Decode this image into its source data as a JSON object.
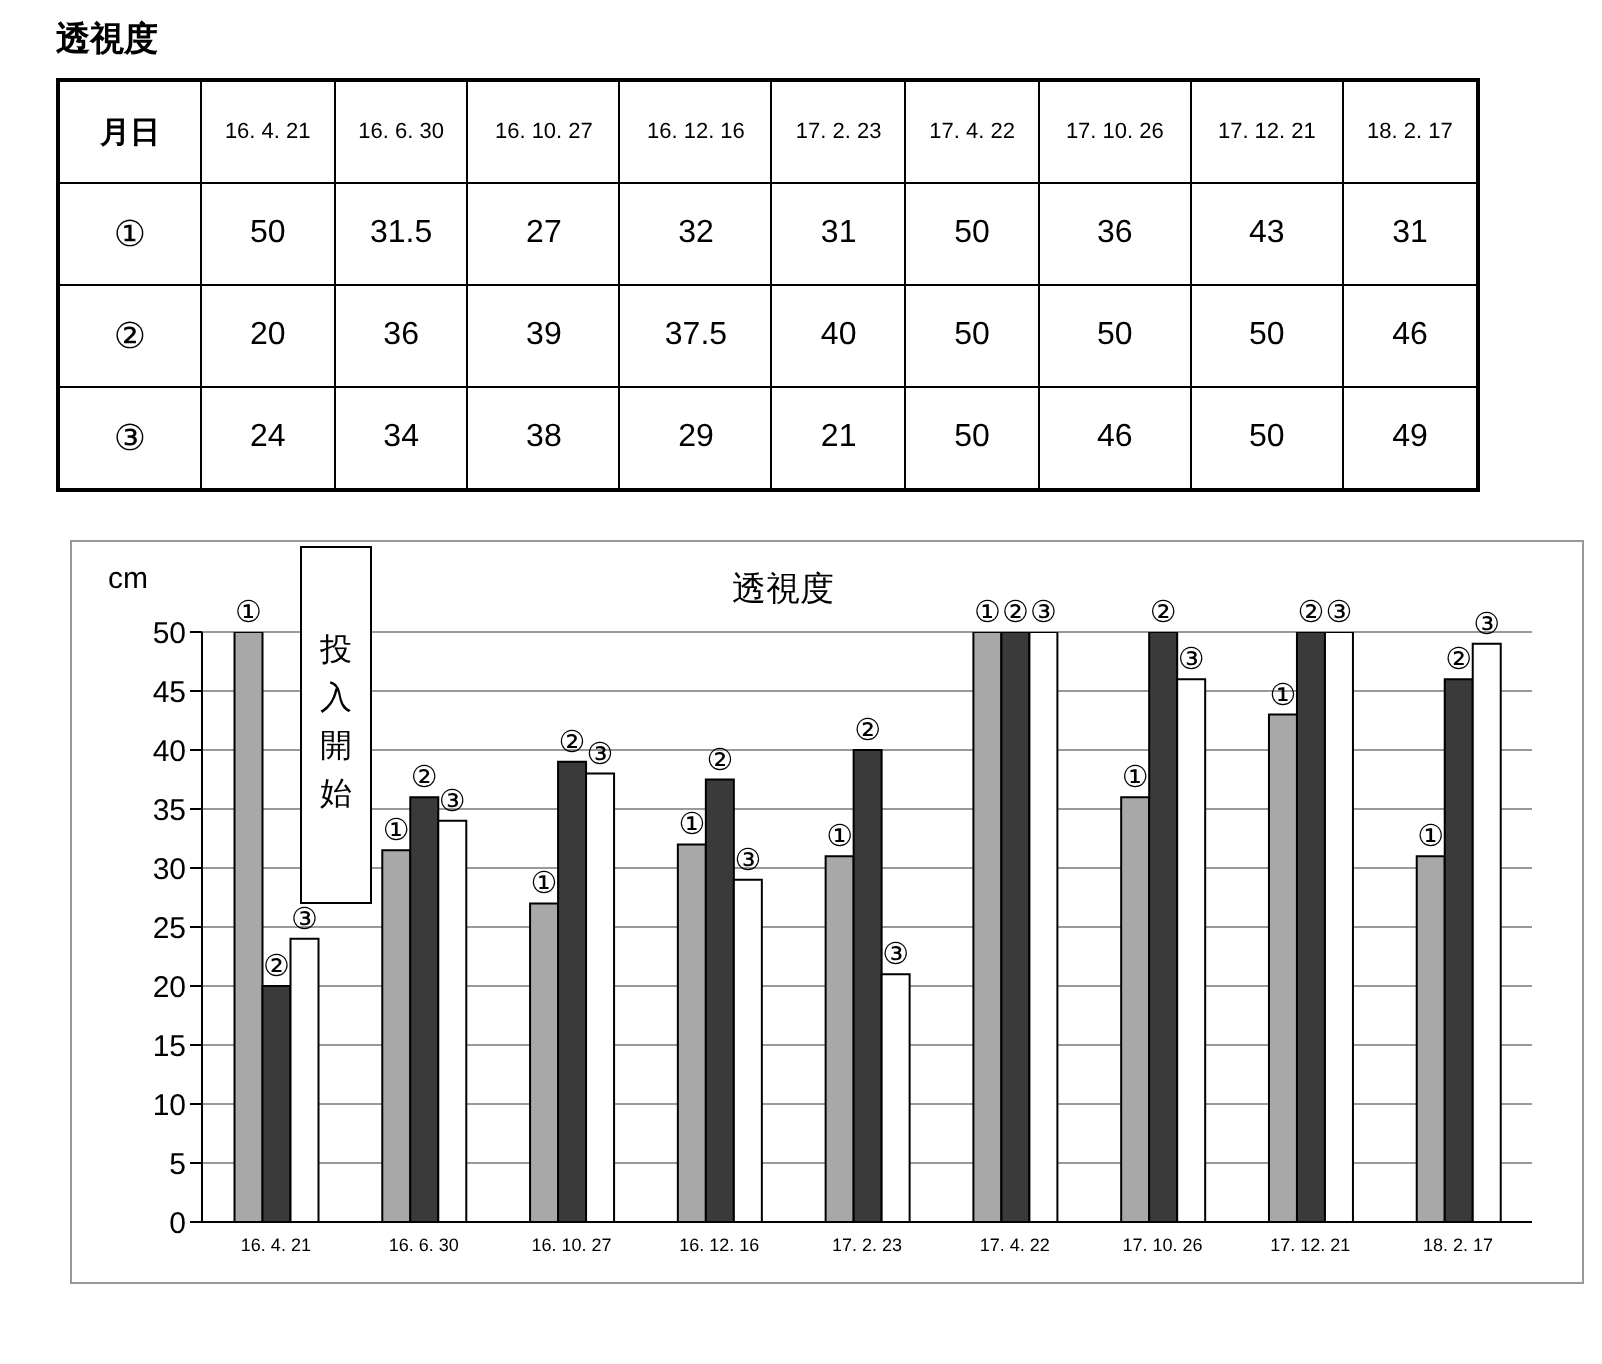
{
  "chart_data": {
    "type": "bar",
    "title": "透視度",
    "subtitle": "透視度",
    "ylabel": "cm",
    "categories": [
      "16. 4. 21",
      "16. 6. 30",
      "16. 10. 27",
      "16. 12. 16",
      "17. 2. 23",
      "17. 4. 22",
      "17. 10. 26",
      "17. 12. 21",
      "18. 2. 17"
    ],
    "series": [
      {
        "name": "①",
        "color": "#a8a8a8",
        "values": [
          50,
          31.5,
          27,
          32,
          31,
          50,
          36,
          43,
          31
        ]
      },
      {
        "name": "②",
        "color": "#3a3a3a",
        "values": [
          20,
          36,
          39,
          37.5,
          40,
          50,
          50,
          50,
          46
        ]
      },
      {
        "name": "③",
        "color": "#ffffff",
        "values": [
          24,
          34,
          38,
          29,
          21,
          50,
          46,
          50,
          49
        ]
      }
    ],
    "ylim": [
      0,
      50
    ],
    "yticks": [
      0,
      5,
      10,
      15,
      20,
      25,
      30,
      35,
      40,
      45,
      50
    ],
    "grid": "y",
    "data_labels": true,
    "annotations": [
      "月日",
      "投入開始"
    ]
  }
}
